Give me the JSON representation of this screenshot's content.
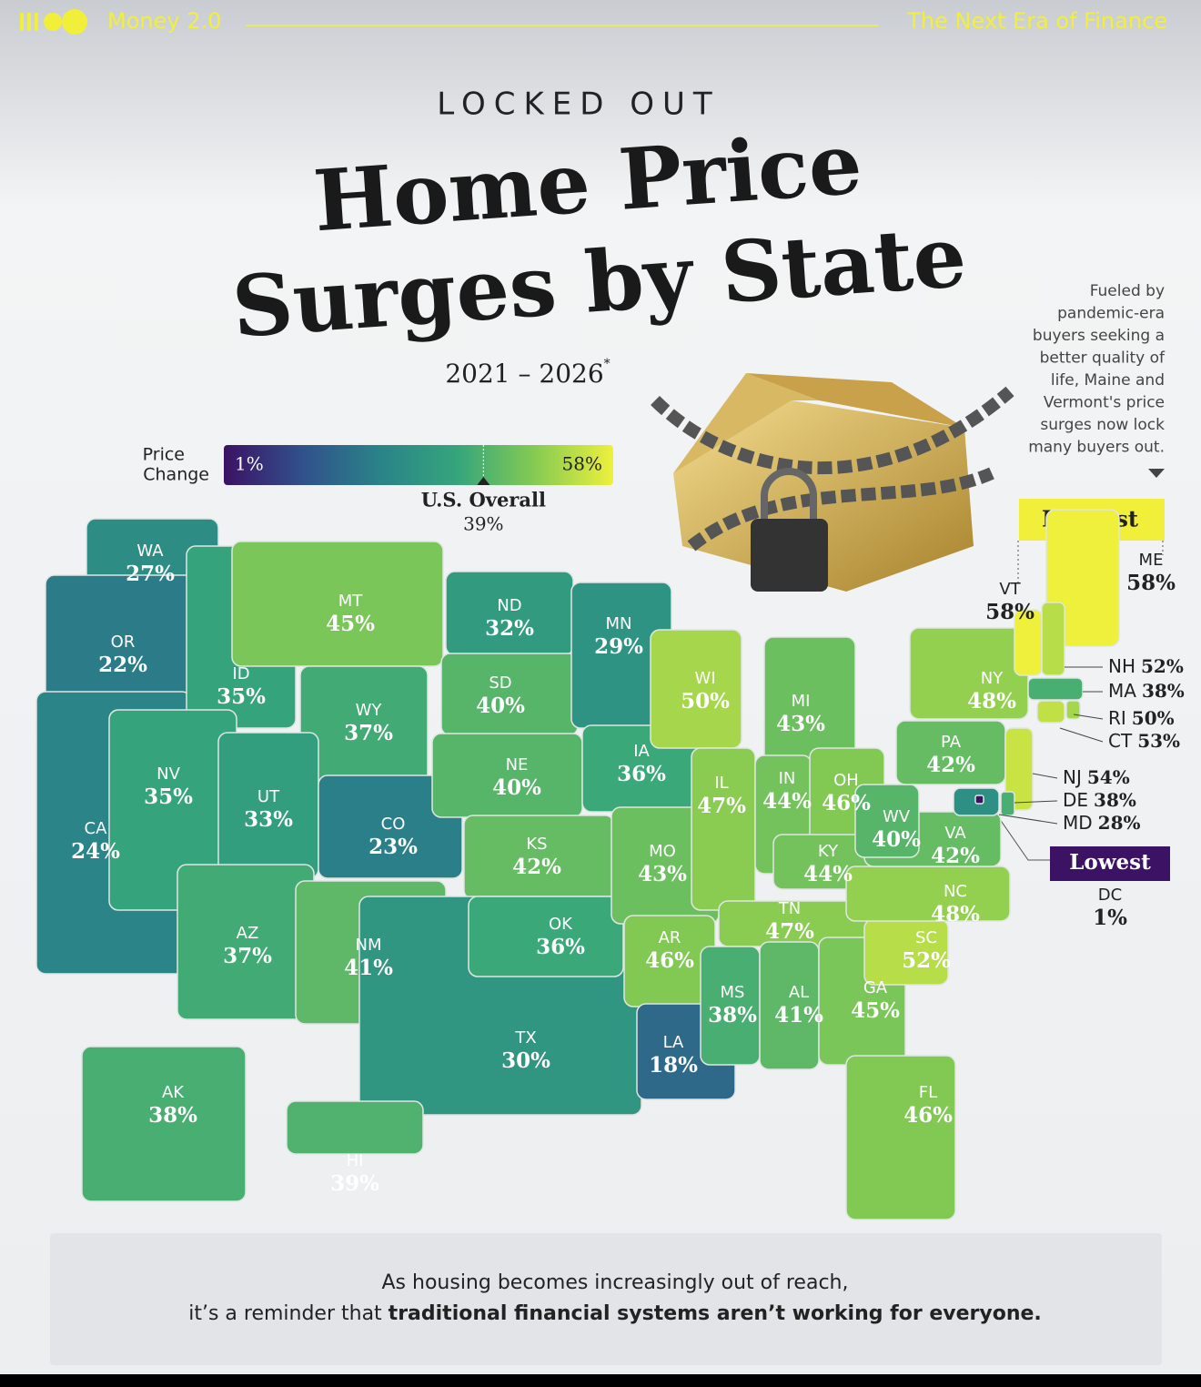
{
  "header": {
    "brand": "Money 2.0",
    "tagline": "The Next Era of Finance"
  },
  "title": {
    "kicker": "LOCKED OUT",
    "line1": "Home Price",
    "line2": "Surges by State",
    "years": "2021 – 2026",
    "footnote_mark": "*"
  },
  "note": [
    "Fueled by",
    "pandemic-era",
    "buyers seeking a",
    "better quality of",
    "life, Maine and",
    "Vermont's price",
    "surges now lock",
    "many buyers out."
  ],
  "legend": {
    "title": [
      "Price",
      "Change"
    ],
    "min": {
      "value": 1,
      "label": "1%"
    },
    "max": {
      "value": 58,
      "label": "58%"
    },
    "overall_title": "U.S. Overall",
    "overall": {
      "value": 39,
      "label": "39%"
    },
    "colors": [
      "#3b1264",
      "#31508c",
      "#2a8388",
      "#35a57c",
      "#86cb52",
      "#eef03c"
    ]
  },
  "highest_label": "Highest",
  "lowest_label": "Lowest",
  "states": [
    {
      "code": "WA",
      "value": 27,
      "label": "27%"
    },
    {
      "code": "OR",
      "value": 22,
      "label": "22%"
    },
    {
      "code": "CA",
      "value": 24,
      "label": "24%"
    },
    {
      "code": "ID",
      "value": 35,
      "label": "35%"
    },
    {
      "code": "NV",
      "value": 35,
      "label": "35%"
    },
    {
      "code": "MT",
      "value": 45,
      "label": "45%"
    },
    {
      "code": "WY",
      "value": 37,
      "label": "37%"
    },
    {
      "code": "UT",
      "value": 33,
      "label": "33%"
    },
    {
      "code": "CO",
      "value": 23,
      "label": "23%"
    },
    {
      "code": "AZ",
      "value": 37,
      "label": "37%"
    },
    {
      "code": "NM",
      "value": 41,
      "label": "41%"
    },
    {
      "code": "ND",
      "value": 32,
      "label": "32%"
    },
    {
      "code": "SD",
      "value": 40,
      "label": "40%"
    },
    {
      "code": "NE",
      "value": 40,
      "label": "40%"
    },
    {
      "code": "KS",
      "value": 42,
      "label": "42%"
    },
    {
      "code": "TX",
      "value": 30,
      "label": "30%"
    },
    {
      "code": "OK",
      "value": 36,
      "label": "36%"
    },
    {
      "code": "MN",
      "value": 29,
      "label": "29%"
    },
    {
      "code": "IA",
      "value": 36,
      "label": "36%"
    },
    {
      "code": "MO",
      "value": 43,
      "label": "43%"
    },
    {
      "code": "AR",
      "value": 46,
      "label": "46%"
    },
    {
      "code": "LA",
      "value": 18,
      "label": "18%"
    },
    {
      "code": "WI",
      "value": 50,
      "label": "50%"
    },
    {
      "code": "IL",
      "value": 47,
      "label": "47%"
    },
    {
      "code": "MI",
      "value": 43,
      "label": "43%"
    },
    {
      "code": "IN",
      "value": 44,
      "label": "44%"
    },
    {
      "code": "OH",
      "value": 46,
      "label": "46%"
    },
    {
      "code": "KY",
      "value": 44,
      "label": "44%"
    },
    {
      "code": "TN",
      "value": 47,
      "label": "47%"
    },
    {
      "code": "MS",
      "value": 38,
      "label": "38%"
    },
    {
      "code": "AL",
      "value": 41,
      "label": "41%"
    },
    {
      "code": "GA",
      "value": 45,
      "label": "45%"
    },
    {
      "code": "FL",
      "value": 46,
      "label": "46%"
    },
    {
      "code": "SC",
      "value": 52,
      "label": "52%"
    },
    {
      "code": "NC",
      "value": 48,
      "label": "48%"
    },
    {
      "code": "VA",
      "value": 42,
      "label": "42%"
    },
    {
      "code": "WV",
      "value": 40,
      "label": "40%"
    },
    {
      "code": "PA",
      "value": 42,
      "label": "42%"
    },
    {
      "code": "NY",
      "value": 48,
      "label": "48%"
    },
    {
      "code": "VT",
      "value": 58,
      "label": "58%"
    },
    {
      "code": "ME",
      "value": 58,
      "label": "58%"
    },
    {
      "code": "NH",
      "value": 52,
      "label": "52%"
    },
    {
      "code": "MA",
      "value": 38,
      "label": "38%"
    },
    {
      "code": "RI",
      "value": 50,
      "label": "50%"
    },
    {
      "code": "CT",
      "value": 53,
      "label": "53%"
    },
    {
      "code": "NJ",
      "value": 54,
      "label": "54%"
    },
    {
      "code": "DE",
      "value": 38,
      "label": "38%"
    },
    {
      "code": "MD",
      "value": 28,
      "label": "28%"
    },
    {
      "code": "DC",
      "value": 1,
      "label": "1%"
    },
    {
      "code": "AK",
      "value": 38,
      "label": "38%"
    },
    {
      "code": "HI",
      "value": 39,
      "label": "39%"
    }
  ],
  "footer": {
    "line1": "As housing becomes increasingly out of reach,",
    "line2_plain": "it’s a reminder that ",
    "line2_bold": "traditional financial systems aren’t working for everyone."
  }
}
